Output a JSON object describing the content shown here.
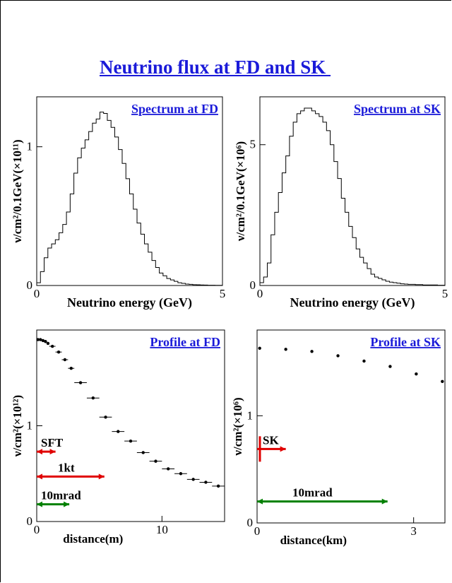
{
  "page": {
    "title": "Neutrino flux at FD and SK "
  },
  "chart_data": [
    {
      "id": "spectrum-fd",
      "type": "histogram",
      "title": "Spectrum at FD",
      "xlabel": "Neutrino energy (GeV)",
      "ylabel": "ν/cm²/0.1GeV(×10¹¹)",
      "xlim": [
        0,
        5
      ],
      "ylim": [
        0,
        1.36
      ],
      "xticks": [
        {
          "v": 0,
          "label": "0"
        },
        {
          "v": 5,
          "label": "5"
        }
      ],
      "yticks": [
        {
          "v": 0,
          "label": "0"
        },
        {
          "v": 1,
          "label": "1"
        }
      ],
      "bin_width": 0.1,
      "values": [
        0.02,
        0.1,
        0.2,
        0.27,
        0.3,
        0.33,
        0.38,
        0.44,
        0.53,
        0.66,
        0.81,
        0.92,
        0.99,
        1.05,
        1.11,
        1.17,
        1.2,
        1.25,
        1.24,
        1.19,
        1.14,
        1.07,
        0.98,
        0.88,
        0.77,
        0.66,
        0.55,
        0.45,
        0.37,
        0.3,
        0.24,
        0.18,
        0.13,
        0.09,
        0.07,
        0.05,
        0.04,
        0.03,
        0.02,
        0.015,
        0.01,
        0.008,
        0.006,
        0.005,
        0.004,
        0.003,
        0.002,
        0.002,
        0.001,
        0.001
      ]
    },
    {
      "id": "spectrum-sk",
      "type": "histogram",
      "title": "Spectrum at SK",
      "xlabel": "Neutrino energy (GeV)",
      "ylabel": "ν/cm²/0.1GeV(×10⁶)",
      "xlim": [
        0,
        5
      ],
      "ylim": [
        0,
        6.7
      ],
      "xticks": [
        {
          "v": 0,
          "label": "0"
        },
        {
          "v": 5,
          "label": "5"
        }
      ],
      "yticks": [
        {
          "v": 0,
          "label": "0"
        },
        {
          "v": 5,
          "label": "5"
        }
      ],
      "bin_width": 0.1,
      "values": [
        0.1,
        0.3,
        0.8,
        1.8,
        2.6,
        3.3,
        4.0,
        4.6,
        5.3,
        5.8,
        6.1,
        6.2,
        6.3,
        6.3,
        6.2,
        6.1,
        6.0,
        5.8,
        5.5,
        5.0,
        4.4,
        3.8,
        3.1,
        2.6,
        2.1,
        1.7,
        1.3,
        1.0,
        0.8,
        0.6,
        0.4,
        0.3,
        0.25,
        0.2,
        0.15,
        0.12,
        0.1,
        0.08,
        0.06,
        0.05,
        0.04,
        0.04,
        0.03,
        0.03,
        0.02,
        0.02,
        0.02,
        0.02,
        0.01,
        0.01
      ]
    },
    {
      "id": "profile-fd",
      "type": "scatter",
      "title": "Profile at FD",
      "xlabel": "distance(m)",
      "ylabel": "ν/cm²(×10¹²)",
      "xlim": [
        0,
        15
      ],
      "ylim": [
        0,
        2.0
      ],
      "xticks": [
        {
          "v": 0,
          "label": "0"
        },
        {
          "v": 10,
          "label": "10"
        }
      ],
      "yticks": [
        {
          "v": 0,
          "label": "0"
        },
        {
          "v": 1,
          "label": "1"
        }
      ],
      "points": [
        {
          "x": 0.1,
          "y": 1.9,
          "xerr": 0.1
        },
        {
          "x": 0.3,
          "y": 1.9,
          "xerr": 0.1
        },
        {
          "x": 0.5,
          "y": 1.89,
          "xerr": 0.1
        },
        {
          "x": 0.7,
          "y": 1.88,
          "xerr": 0.1
        },
        {
          "x": 0.9,
          "y": 1.86,
          "xerr": 0.1
        },
        {
          "x": 1.25,
          "y": 1.83,
          "xerr": 0.25
        },
        {
          "x": 1.75,
          "y": 1.77,
          "xerr": 0.25
        },
        {
          "x": 2.25,
          "y": 1.69,
          "xerr": 0.25
        },
        {
          "x": 2.75,
          "y": 1.6,
          "xerr": 0.25
        },
        {
          "x": 3.5,
          "y": 1.45,
          "xerr": 0.5
        },
        {
          "x": 4.5,
          "y": 1.29,
          "xerr": 0.5
        },
        {
          "x": 5.5,
          "y": 1.09,
          "xerr": 0.5
        },
        {
          "x": 6.5,
          "y": 0.94,
          "xerr": 0.5
        },
        {
          "x": 7.5,
          "y": 0.84,
          "xerr": 0.5
        },
        {
          "x": 8.5,
          "y": 0.72,
          "xerr": 0.5
        },
        {
          "x": 9.5,
          "y": 0.63,
          "xerr": 0.5
        },
        {
          "x": 10.5,
          "y": 0.55,
          "xerr": 0.5
        },
        {
          "x": 11.5,
          "y": 0.5,
          "xerr": 0.5
        },
        {
          "x": 12.5,
          "y": 0.44,
          "xerr": 0.5
        },
        {
          "x": 13.5,
          "y": 0.41,
          "xerr": 0.5
        },
        {
          "x": 14.5,
          "y": 0.37,
          "xerr": 0.5
        }
      ],
      "annotations": [
        {
          "label": "SFT",
          "x0": 0,
          "x1": 1.5,
          "y": 0.73,
          "color": "#e00000"
        },
        {
          "label": "1kt",
          "x0": 0,
          "x1": 5.4,
          "y": 0.47,
          "color": "#e00000"
        },
        {
          "label": "10mrad",
          "x0": 0,
          "x1": 2.6,
          "y": 0.18,
          "color": "#008000"
        }
      ]
    },
    {
      "id": "profile-sk",
      "type": "scatter",
      "title": "Profile at SK",
      "xlabel": "distance(km)",
      "ylabel": "ν/cm²(×10⁶)",
      "xlim": [
        0,
        3.6
      ],
      "ylim": [
        0,
        1.8
      ],
      "xticks": [
        {
          "v": 0,
          "label": "0"
        },
        {
          "v": 3,
          "label": "3"
        }
      ],
      "yticks": [
        {
          "v": 0,
          "label": "0"
        },
        {
          "v": 1,
          "label": "1"
        }
      ],
      "points": [
        {
          "x": 0.05,
          "y": 1.63,
          "xerr": 0.0
        },
        {
          "x": 0.55,
          "y": 1.62,
          "xerr": 0.0
        },
        {
          "x": 1.05,
          "y": 1.6,
          "xerr": 0.0
        },
        {
          "x": 1.55,
          "y": 1.56,
          "xerr": 0.0
        },
        {
          "x": 2.05,
          "y": 1.51,
          "xerr": 0.0
        },
        {
          "x": 2.55,
          "y": 1.46,
          "xerr": 0.0
        },
        {
          "x": 3.05,
          "y": 1.39,
          "xerr": 0.0
        },
        {
          "x": 3.55,
          "y": 1.32,
          "xerr": 0.0
        }
      ],
      "annotations": [
        {
          "label": "SK",
          "x0": 0,
          "x1": 0.55,
          "y": 0.69,
          "color": "#e00000",
          "marker": "vbar"
        },
        {
          "label": "10mrad",
          "x0": 0,
          "x1": 2.5,
          "y": 0.2,
          "color": "#008000"
        }
      ]
    }
  ]
}
